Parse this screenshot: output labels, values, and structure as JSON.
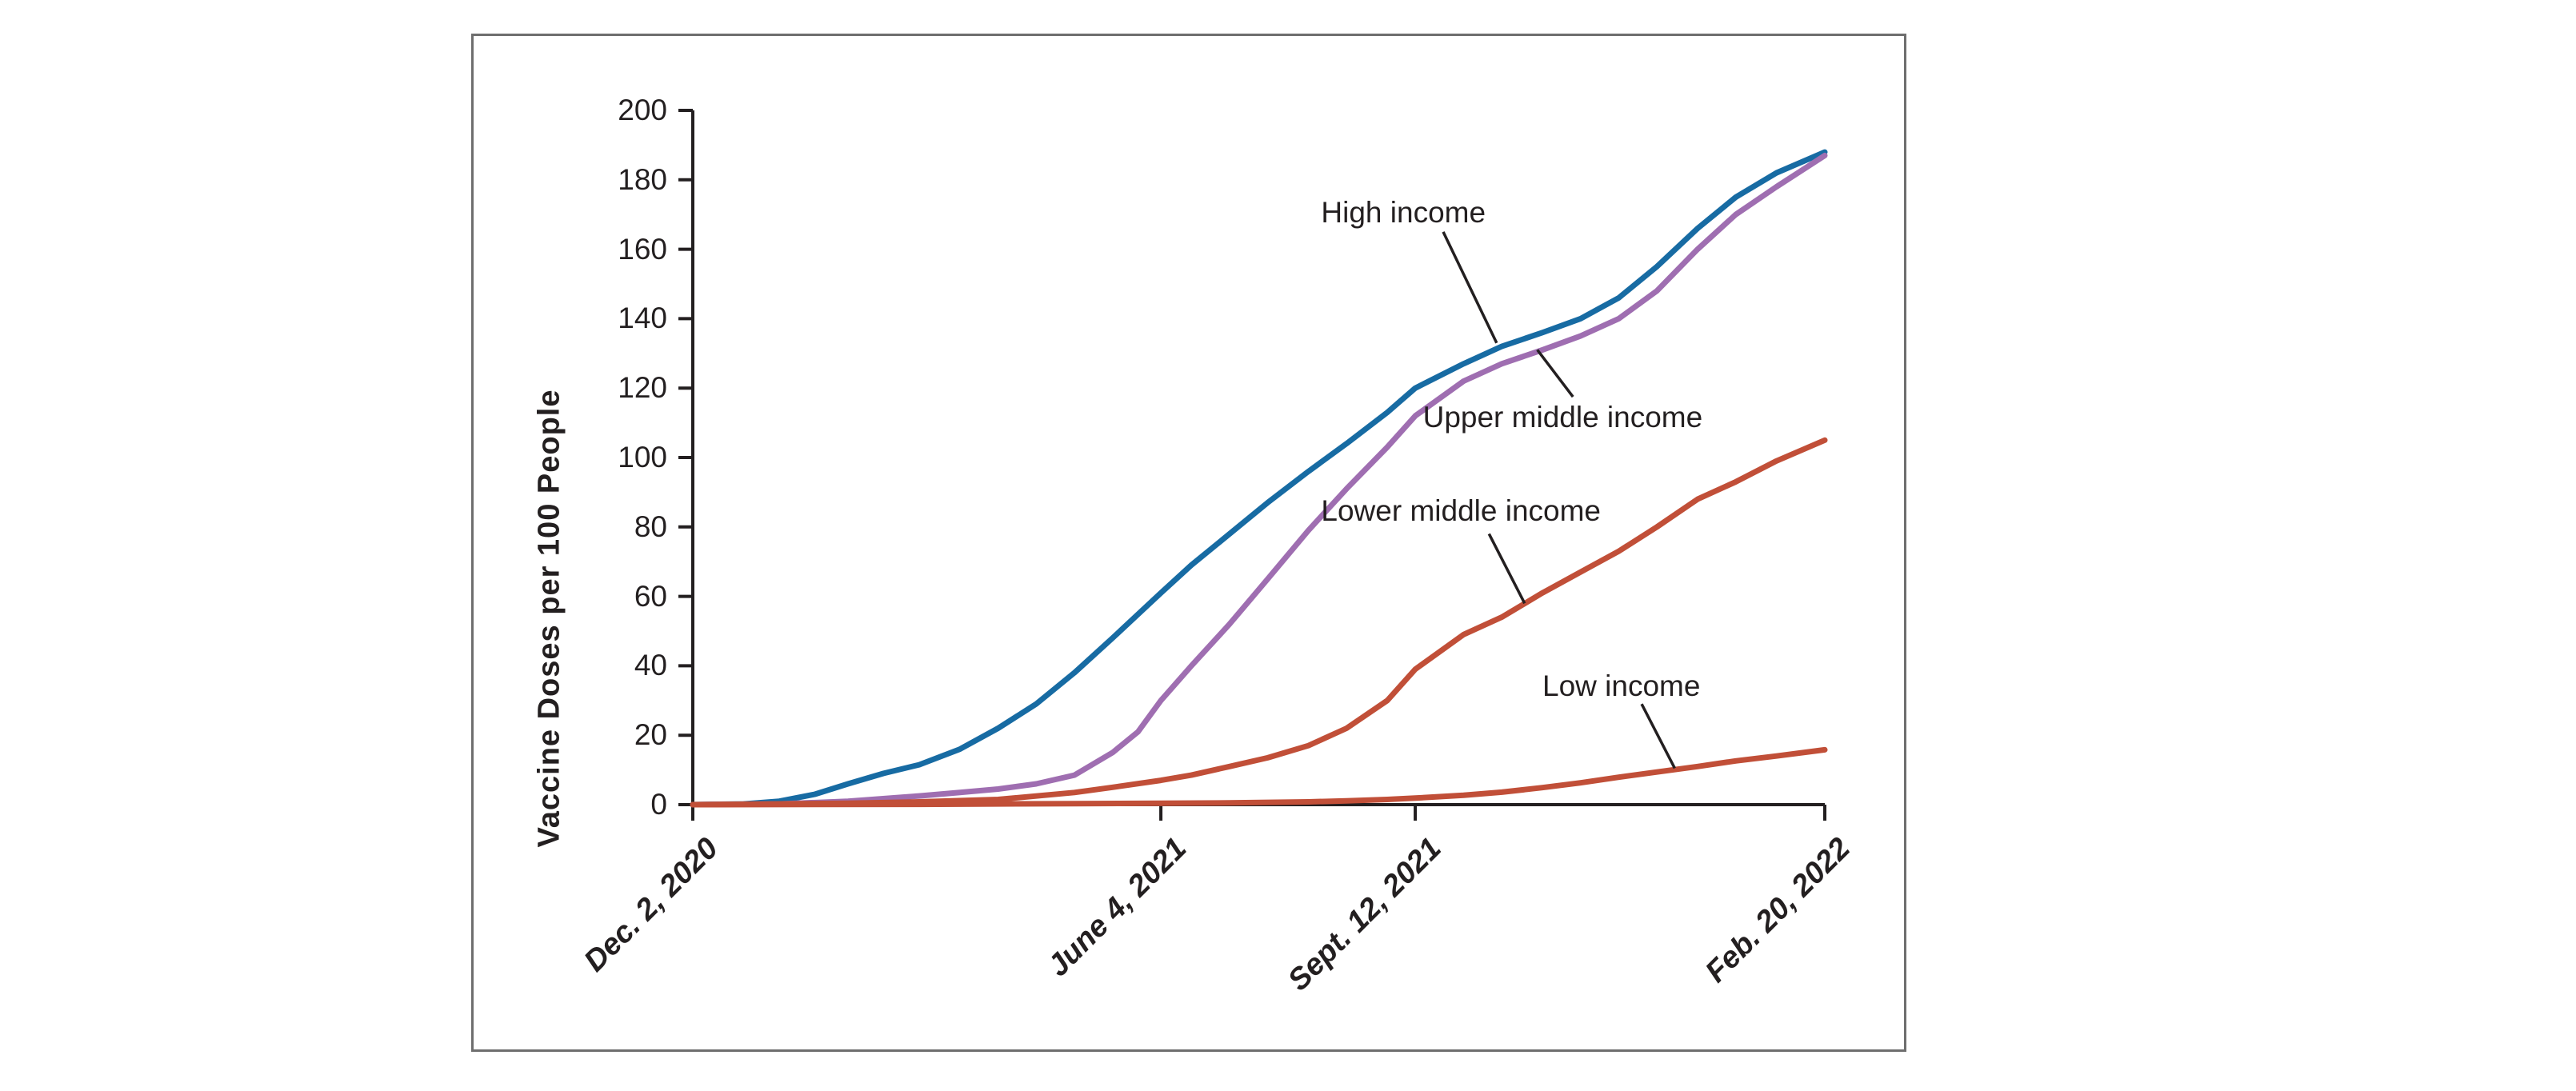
{
  "figure": {
    "background_color": "#ffffff",
    "border_color": "#6e6e6e",
    "text_color": "#231f20",
    "axis_color": "#231f20"
  },
  "chart_data": {
    "type": "line",
    "title": "",
    "xlabel": "",
    "ylabel": "Vaccine Doses per 100 People",
    "ylim": [
      0,
      200
    ],
    "yticks": [
      0,
      20,
      40,
      60,
      80,
      100,
      120,
      140,
      160,
      180,
      200
    ],
    "x_axis_unit": "days since Dec. 2, 2020",
    "xlim_days": [
      0,
      445
    ],
    "xticks": [
      {
        "day": 0,
        "label": "Dec. 2, 2020"
      },
      {
        "day": 184,
        "label": "June 4, 2021"
      },
      {
        "day": 284,
        "label": "Sept. 12, 2021"
      },
      {
        "day": 445,
        "label": "Feb. 20, 2022"
      }
    ],
    "grid": false,
    "legend_position": "annotated-on-chart",
    "series": [
      {
        "name": "High income",
        "color": "#176ba3",
        "points": [
          [
            0,
            0
          ],
          [
            20,
            0.2
          ],
          [
            34,
            1
          ],
          [
            48,
            3
          ],
          [
            61,
            6
          ],
          [
            75,
            9
          ],
          [
            89,
            11.5
          ],
          [
            105,
            16
          ],
          [
            120,
            22
          ],
          [
            135,
            29
          ],
          [
            150,
            38
          ],
          [
            165,
            48
          ],
          [
            184,
            61
          ],
          [
            196,
            69
          ],
          [
            211,
            78
          ],
          [
            226,
            87
          ],
          [
            242,
            96
          ],
          [
            257,
            104
          ],
          [
            273,
            113
          ],
          [
            284,
            120
          ],
          [
            303,
            127
          ],
          [
            318,
            132
          ],
          [
            334,
            136
          ],
          [
            349,
            140
          ],
          [
            364,
            146
          ],
          [
            379,
            155
          ],
          [
            395,
            166
          ],
          [
            410,
            175
          ],
          [
            426,
            182
          ],
          [
            445,
            188
          ]
        ]
      },
      {
        "name": "Upper middle income",
        "color": "#9f6eb1",
        "points": [
          [
            0,
            0
          ],
          [
            34,
            0.2
          ],
          [
            61,
            1
          ],
          [
            89,
            2.5
          ],
          [
            105,
            3.5
          ],
          [
            120,
            4.5
          ],
          [
            135,
            6
          ],
          [
            150,
            8.5
          ],
          [
            165,
            15
          ],
          [
            175,
            21
          ],
          [
            184,
            30
          ],
          [
            196,
            40
          ],
          [
            211,
            52
          ],
          [
            226,
            65
          ],
          [
            242,
            79
          ],
          [
            257,
            91
          ],
          [
            273,
            103
          ],
          [
            284,
            112
          ],
          [
            303,
            122
          ],
          [
            318,
            127
          ],
          [
            334,
            131
          ],
          [
            349,
            135
          ],
          [
            364,
            140
          ],
          [
            379,
            148
          ],
          [
            395,
            160
          ],
          [
            410,
            170
          ],
          [
            426,
            178
          ],
          [
            445,
            187
          ]
        ]
      },
      {
        "name": "Lower middle income",
        "color": "#c14f38",
        "points": [
          [
            0,
            0
          ],
          [
            61,
            0.4
          ],
          [
            89,
            0.8
          ],
          [
            120,
            1.5
          ],
          [
            150,
            3.5
          ],
          [
            165,
            5
          ],
          [
            184,
            7
          ],
          [
            196,
            8.5
          ],
          [
            211,
            11
          ],
          [
            226,
            13.5
          ],
          [
            242,
            17
          ],
          [
            257,
            22
          ],
          [
            273,
            30
          ],
          [
            284,
            39
          ],
          [
            303,
            49
          ],
          [
            318,
            54
          ],
          [
            334,
            61
          ],
          [
            349,
            67
          ],
          [
            364,
            73
          ],
          [
            379,
            80
          ],
          [
            395,
            88
          ],
          [
            410,
            93
          ],
          [
            426,
            99
          ],
          [
            445,
            105
          ]
        ]
      },
      {
        "name": "Low income",
        "color": "#c14f38",
        "points": [
          [
            0,
            0
          ],
          [
            89,
            0.1
          ],
          [
            120,
            0.2
          ],
          [
            150,
            0.3
          ],
          [
            184,
            0.4
          ],
          [
            211,
            0.5
          ],
          [
            242,
            0.8
          ],
          [
            257,
            1.1
          ],
          [
            273,
            1.5
          ],
          [
            284,
            1.9
          ],
          [
            303,
            2.7
          ],
          [
            318,
            3.6
          ],
          [
            334,
            4.9
          ],
          [
            349,
            6.3
          ],
          [
            364,
            7.9
          ],
          [
            379,
            9.4
          ],
          [
            395,
            11
          ],
          [
            410,
            12.6
          ],
          [
            426,
            14
          ],
          [
            445,
            15.8
          ]
        ]
      }
    ],
    "annotations": [
      {
        "label": "High income",
        "series": "High income",
        "label_pos": {
          "day": 247,
          "value": 175
        },
        "leader": {
          "from": {
            "day": 295,
            "value": 165
          },
          "to": {
            "day": 316,
            "value": 133
          }
        }
      },
      {
        "label": "Upper middle income",
        "series": "Upper middle income",
        "label_pos": {
          "day": 287,
          "value": 116
        },
        "leader": {
          "from": {
            "day": 332,
            "value": 131
          },
          "to": {
            "day": 346,
            "value": 117.5
          }
        }
      },
      {
        "label": "Lower middle income",
        "series": "Lower middle income",
        "label_pos": {
          "day": 247,
          "value": 89
        },
        "leader": {
          "from": {
            "day": 313,
            "value": 78
          },
          "to": {
            "day": 327,
            "value": 58
          }
        }
      },
      {
        "label": "Low income",
        "series": "Low income",
        "label_pos": {
          "day": 334,
          "value": 38.5
        },
        "leader": {
          "from": {
            "day": 373,
            "value": 29
          },
          "to": {
            "day": 386,
            "value": 10.5
          }
        }
      }
    ]
  }
}
